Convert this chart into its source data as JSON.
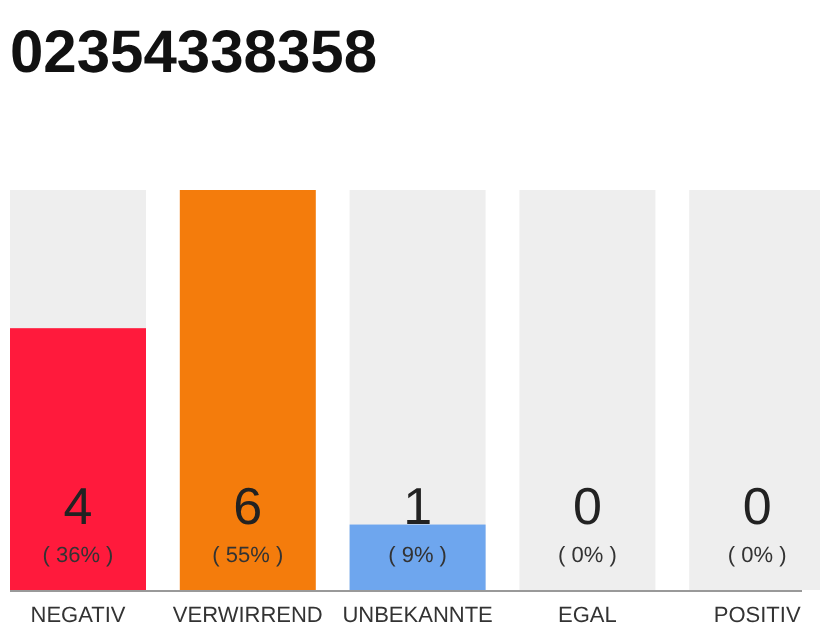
{
  "chart_data": {
    "type": "bar",
    "title": "02354338358",
    "tick_labels": "x",
    "categories": [
      "NEGATIV",
      "VERWIRREND",
      "UNBEKANNTE",
      "EGAL",
      "POSITIV"
    ],
    "values": [
      36,
      55,
      9,
      0,
      0
    ],
    "colors": [
      "#ff1a3c",
      "#f47c0c",
      "#6ea6ee",
      "#6ea6ee",
      "#6ea6ee"
    ],
    "value_labels": [
      "( 36% )",
      "( 55% )",
      "( 9% )",
      "( 0% )",
      "( 0% )"
    ],
    "annotations": [
      "4",
      "6",
      "1",
      "0",
      "0"
    ],
    "bands": [
      {
        "axis": "x",
        "from": "NEGATIV",
        "to": "NEGATIV",
        "color": "#eeeeee"
      },
      {
        "axis": "x",
        "from": "UNBEKANNTE",
        "to": "UNBEKANNTE",
        "color": "#eeeeee"
      },
      {
        "axis": "x",
        "from": "EGAL",
        "to": "EGAL",
        "color": "#eeeeee"
      },
      {
        "axis": "x",
        "from": "POSITIV",
        "to": "POSITIV",
        "color": "#eeeeee"
      }
    ]
  }
}
